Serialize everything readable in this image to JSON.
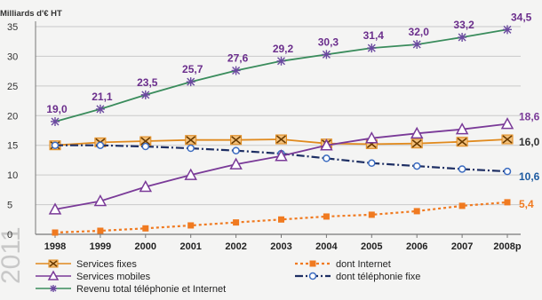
{
  "watermark": "2011",
  "chart_data": {
    "type": "line",
    "title": "",
    "ylabel": "Milliards d'€ HT",
    "xlabel": "",
    "categories": [
      "1998",
      "1999",
      "2000",
      "2001",
      "2002",
      "2003",
      "2004",
      "2005",
      "2006",
      "2007",
      "2008p"
    ],
    "ylim": [
      0,
      35
    ],
    "yticks": [
      "0",
      "5",
      "10",
      "15",
      "20",
      "25",
      "30",
      "35"
    ],
    "grid": "horizontal",
    "legend_position": "bottom",
    "series": [
      {
        "name": "Services fixes",
        "color": "#e08a1e",
        "marker": "x-box",
        "dash": "solid",
        "values": [
          15.0,
          15.5,
          15.7,
          15.9,
          15.9,
          16.0,
          15.3,
          15.2,
          15.3,
          15.6,
          16.0
        ],
        "end_label": "16,0"
      },
      {
        "name": "Services mobiles",
        "color": "#7a3a98",
        "marker": "triangle",
        "dash": "solid",
        "values": [
          4.2,
          5.6,
          8.0,
          10.0,
          11.8,
          13.2,
          15.0,
          16.2,
          17.0,
          17.7,
          18.6
        ],
        "end_label": "18,6"
      },
      {
        "name": "Revenu total téléphonie et Internet",
        "color": "#3a8c5c",
        "marker": "star",
        "dash": "solid",
        "values": [
          19.0,
          21.1,
          23.5,
          25.7,
          27.6,
          29.2,
          30.3,
          31.4,
          32.0,
          33.2,
          34.5
        ],
        "labels": [
          "19,0",
          "21,1",
          "23,5",
          "25,7",
          "27,6",
          "29,2",
          "30,3",
          "31,4",
          "32,0",
          "33,2",
          "34,5"
        ]
      },
      {
        "name": "dont Internet",
        "color": "#f07a20",
        "marker": "square",
        "dash": "dotted",
        "values": [
          0.3,
          0.6,
          1.0,
          1.5,
          2.0,
          2.5,
          3.0,
          3.3,
          3.9,
          4.8,
          5.4
        ],
        "end_label": "5,4"
      },
      {
        "name": "dont téléphonie fixe",
        "color": "#1d2e63",
        "marker": "circle",
        "dash": "dashdot",
        "values": [
          15.0,
          15.0,
          14.8,
          14.5,
          14.1,
          13.6,
          12.8,
          12.0,
          11.5,
          11.0,
          10.6
        ],
        "end_label": "10,6"
      }
    ]
  }
}
